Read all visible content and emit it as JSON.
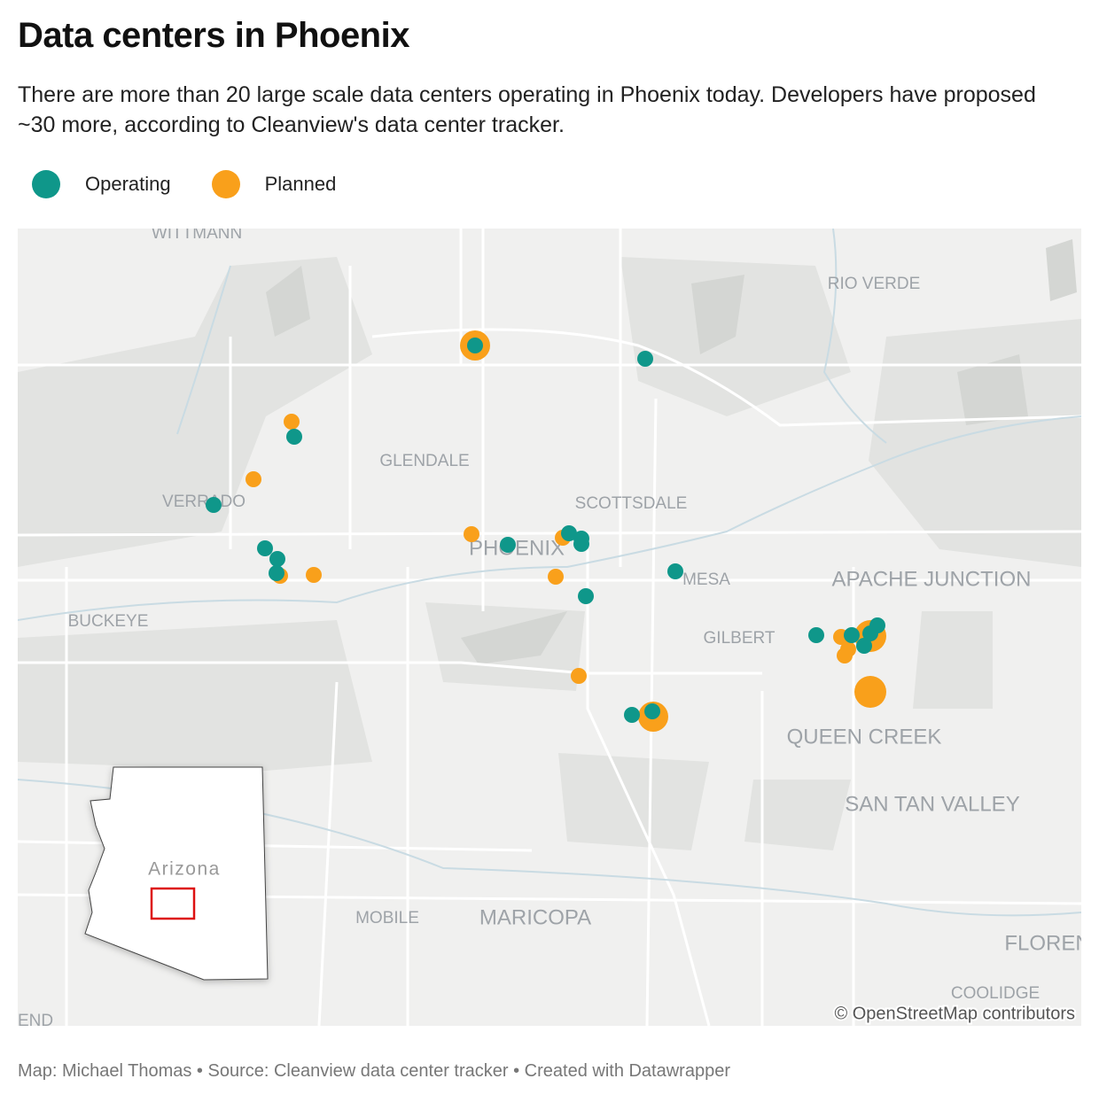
{
  "header": {
    "title": "Data centers in Phoenix",
    "subtitle": "There are more than 20 large scale data centers operating in Phoenix today. Developers have proposed ~30 more, according to Cleanview's data center tracker."
  },
  "legend": {
    "items": [
      "Operating",
      "Planned"
    ]
  },
  "map": {
    "places": [
      "WITTMANN",
      "RIO VERDE",
      "GLENDALE",
      "VERRADO",
      "SCOTTSDALE",
      "PHOENIX",
      "MESA",
      "APACHE JUNCTION",
      "BUCKEYE",
      "GILBERT",
      "QUEEN CREEK",
      "SAN TAN VALLEY",
      "MOBILE",
      "MARICOPA",
      "FLOREN",
      "COOLIDGE",
      "END"
    ],
    "inset_label": "Arizona",
    "attribution": "© OpenStreetMap contributors"
  },
  "footer": "Map: Michael Thomas • Source: Cleanview data center tracker • Created with Datawrapper"
}
